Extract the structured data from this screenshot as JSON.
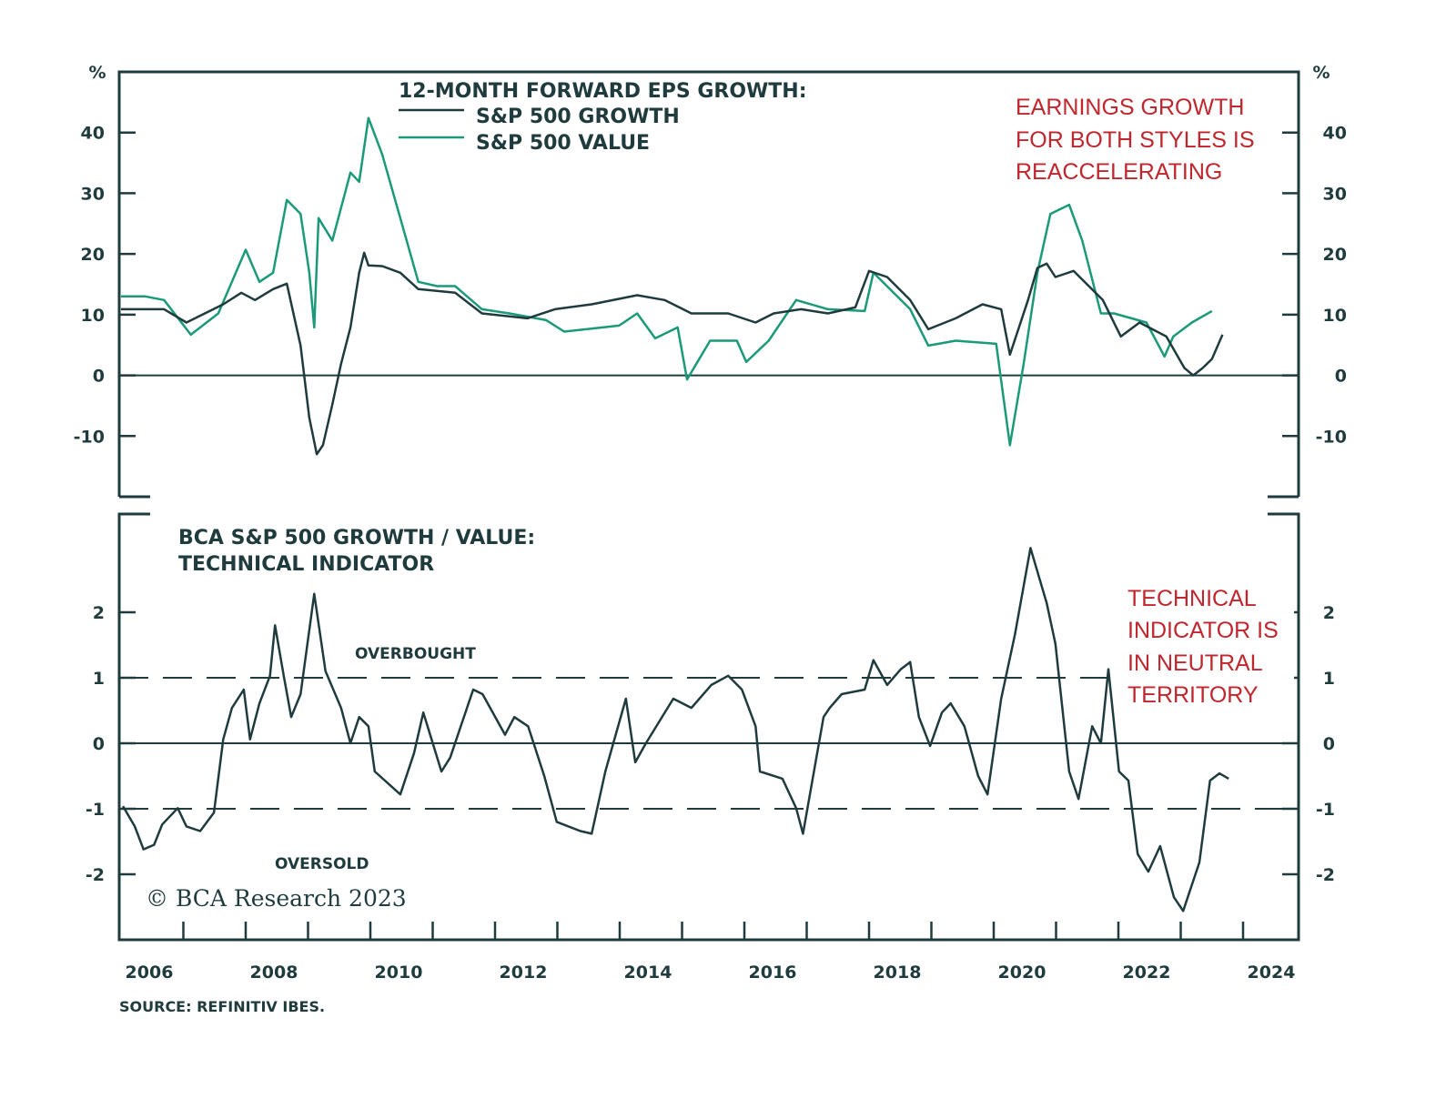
{
  "chart_data": [
    {
      "type": "line",
      "panel": "top",
      "title": "12-MONTH FORWARD EPS GROWTH:",
      "ylabel": "%",
      "ylim": [
        -20,
        50
      ],
      "yticks": [
        -10,
        0,
        10,
        20,
        30,
        40
      ],
      "ytick_labels": [
        "-10",
        "0",
        "10",
        "20",
        "30",
        "40"
      ],
      "xlim": [
        2006,
        2024.9
      ],
      "grid": false,
      "legend_position": "top-center",
      "annotation": [
        "EARNINGS GROWTH",
        "FOR BOTH STYLES IS",
        "REACCELERATING"
      ],
      "series": [
        {
          "name": "S&P 500 GROWTH",
          "color": "#1f3b3e",
          "points": [
            [
              2006.0,
              10.9
            ],
            [
              2006.69,
              10.9
            ],
            [
              2007.05,
              8.7
            ],
            [
              2007.64,
              11.7
            ],
            [
              2007.93,
              13.6
            ],
            [
              2008.15,
              12.4
            ],
            [
              2008.44,
              14.2
            ],
            [
              2008.66,
              15.1
            ],
            [
              2008.88,
              4.9
            ],
            [
              2009.02,
              -7.0
            ],
            [
              2009.14,
              -13.0
            ],
            [
              2009.24,
              -11.5
            ],
            [
              2009.39,
              -4.8
            ],
            [
              2009.53,
              1.9
            ],
            [
              2009.68,
              7.9
            ],
            [
              2009.82,
              16.9
            ],
            [
              2009.9,
              20.2
            ],
            [
              2009.97,
              18.1
            ],
            [
              2010.19,
              18.0
            ],
            [
              2010.48,
              16.9
            ],
            [
              2010.77,
              14.2
            ],
            [
              2011.36,
              13.6
            ],
            [
              2011.79,
              10.2
            ],
            [
              2012.52,
              9.4
            ],
            [
              2012.96,
              10.9
            ],
            [
              2013.55,
              11.7
            ],
            [
              2014.28,
              13.2
            ],
            [
              2014.72,
              12.4
            ],
            [
              2015.15,
              10.2
            ],
            [
              2015.74,
              10.2
            ],
            [
              2016.18,
              8.7
            ],
            [
              2016.47,
              10.2
            ],
            [
              2016.91,
              10.9
            ],
            [
              2017.34,
              10.2
            ],
            [
              2017.78,
              11.2
            ],
            [
              2018.0,
              17.2
            ],
            [
              2018.29,
              16.2
            ],
            [
              2018.66,
              12.4
            ],
            [
              2018.95,
              7.6
            ],
            [
              2019.39,
              9.4
            ],
            [
              2019.82,
              11.7
            ],
            [
              2020.12,
              10.9
            ],
            [
              2020.26,
              3.4
            ],
            [
              2020.55,
              12.4
            ],
            [
              2020.7,
              17.7
            ],
            [
              2020.85,
              18.4
            ],
            [
              2020.99,
              16.2
            ],
            [
              2021.28,
              17.2
            ],
            [
              2021.75,
              12.4
            ],
            [
              2022.04,
              6.4
            ],
            [
              2022.34,
              8.7
            ],
            [
              2022.77,
              6.4
            ],
            [
              2023.06,
              1.2
            ],
            [
              2023.2,
              0.0
            ],
            [
              2023.35,
              1.2
            ],
            [
              2023.5,
              2.7
            ],
            [
              2023.67,
              6.7
            ]
          ]
        },
        {
          "name": "S&P 500 VALUE",
          "color": "#1a9a78",
          "points": [
            [
              2006.0,
              13.0
            ],
            [
              2006.39,
              13.0
            ],
            [
              2006.69,
              12.4
            ],
            [
              2007.12,
              6.7
            ],
            [
              2007.56,
              10.2
            ],
            [
              2008.0,
              20.7
            ],
            [
              2008.22,
              15.4
            ],
            [
              2008.44,
              16.9
            ],
            [
              2008.66,
              28.9
            ],
            [
              2008.88,
              26.6
            ],
            [
              2009.02,
              16.9
            ],
            [
              2009.1,
              7.9
            ],
            [
              2009.17,
              25.9
            ],
            [
              2009.39,
              22.2
            ],
            [
              2009.68,
              33.4
            ],
            [
              2009.82,
              31.9
            ],
            [
              2009.97,
              42.4
            ],
            [
              2010.19,
              36.4
            ],
            [
              2010.48,
              25.9
            ],
            [
              2010.77,
              15.4
            ],
            [
              2011.07,
              14.7
            ],
            [
              2011.36,
              14.7
            ],
            [
              2011.79,
              10.9
            ],
            [
              2012.23,
              10.2
            ],
            [
              2012.82,
              9.1
            ],
            [
              2013.11,
              7.2
            ],
            [
              2013.99,
              8.2
            ],
            [
              2014.28,
              10.2
            ],
            [
              2014.57,
              6.1
            ],
            [
              2014.93,
              7.9
            ],
            [
              2015.08,
              -0.7
            ],
            [
              2015.45,
              5.7
            ],
            [
              2015.88,
              5.7
            ],
            [
              2016.03,
              2.2
            ],
            [
              2016.39,
              5.7
            ],
            [
              2016.83,
              12.4
            ],
            [
              2017.34,
              10.9
            ],
            [
              2017.93,
              10.6
            ],
            [
              2018.07,
              16.9
            ],
            [
              2018.66,
              10.9
            ],
            [
              2018.95,
              4.9
            ],
            [
              2019.39,
              5.7
            ],
            [
              2020.04,
              5.2
            ],
            [
              2020.26,
              -11.5
            ],
            [
              2020.48,
              1.9
            ],
            [
              2020.7,
              16.9
            ],
            [
              2020.91,
              26.6
            ],
            [
              2021.21,
              28.1
            ],
            [
              2021.42,
              22.2
            ],
            [
              2021.72,
              10.2
            ],
            [
              2021.93,
              10.2
            ],
            [
              2022.45,
              8.7
            ],
            [
              2022.74,
              3.1
            ],
            [
              2022.88,
              6.4
            ],
            [
              2023.18,
              8.7
            ],
            [
              2023.5,
              10.6
            ]
          ]
        }
      ]
    },
    {
      "type": "line",
      "panel": "bottom",
      "title": [
        "BCA S&P 500 GROWTH / VALUE:",
        "TECHNICAL INDICATOR"
      ],
      "ylim": [
        -3,
        3.5
      ],
      "yticks": [
        -2,
        -1,
        0,
        1,
        2
      ],
      "ytick_labels": [
        "-2",
        "-1",
        "0",
        "1",
        "2"
      ],
      "xlim": [
        2006,
        2024.9
      ],
      "x_tick_labels": [
        "2006",
        "2008",
        "2010",
        "2012",
        "2014",
        "2016",
        "2018",
        "2020",
        "2022",
        "2024"
      ],
      "x_tick_label_years": [
        2006,
        2008,
        2010,
        2012,
        2014,
        2016,
        2018,
        2020,
        2022,
        2024
      ],
      "reference_lines": [
        {
          "value": 1,
          "style": "dashed",
          "label": "OVERBOUGHT"
        },
        {
          "value": -1,
          "style": "dashed",
          "label": "OVERSOLD"
        },
        {
          "value": 0,
          "style": "solid"
        }
      ],
      "annotation": [
        "TECHNICAL",
        "INDICATOR IS",
        "IN NEUTRAL",
        "TERRITORY"
      ],
      "series": [
        {
          "name": "BCA S&P 500 Growth/Value Technical Indicator",
          "color": "#1f3b3e",
          "points": [
            [
              2006.03,
              -0.96
            ],
            [
              2006.22,
              -1.27
            ],
            [
              2006.36,
              -1.62
            ],
            [
              2006.53,
              -1.55
            ],
            [
              2006.66,
              -1.24
            ],
            [
              2006.91,
              -0.99
            ],
            [
              2007.05,
              -1.27
            ],
            [
              2007.27,
              -1.34
            ],
            [
              2007.49,
              -1.06
            ],
            [
              2007.64,
              0.06
            ],
            [
              2007.78,
              0.54
            ],
            [
              2007.97,
              0.82
            ],
            [
              2008.07,
              0.06
            ],
            [
              2008.22,
              0.61
            ],
            [
              2008.39,
              1.03
            ],
            [
              2008.47,
              1.8
            ],
            [
              2008.61,
              1.03
            ],
            [
              2008.73,
              0.4
            ],
            [
              2008.88,
              0.75
            ],
            [
              2009.1,
              2.28
            ],
            [
              2009.28,
              1.1
            ],
            [
              2009.53,
              0.54
            ],
            [
              2009.68,
              0.0
            ],
            [
              2009.82,
              0.4
            ],
            [
              2009.97,
              0.26
            ],
            [
              2010.07,
              -0.43
            ],
            [
              2010.48,
              -0.78
            ],
            [
              2010.7,
              -0.15
            ],
            [
              2010.85,
              0.47
            ],
            [
              2011.14,
              -0.43
            ],
            [
              2011.28,
              -0.22
            ],
            [
              2011.65,
              0.82
            ],
            [
              2011.8,
              0.75
            ],
            [
              2012.16,
              0.13
            ],
            [
              2012.31,
              0.4
            ],
            [
              2012.53,
              0.26
            ],
            [
              2012.79,
              -0.5
            ],
            [
              2012.99,
              -1.2
            ],
            [
              2013.37,
              -1.34
            ],
            [
              2013.55,
              -1.38
            ],
            [
              2013.77,
              -0.43
            ],
            [
              2014.1,
              0.68
            ],
            [
              2014.25,
              -0.29
            ],
            [
              2014.42,
              0.0
            ],
            [
              2014.86,
              0.68
            ],
            [
              2015.15,
              0.54
            ],
            [
              2015.47,
              0.89
            ],
            [
              2015.74,
              1.03
            ],
            [
              2015.96,
              0.82
            ],
            [
              2016.18,
              0.26
            ],
            [
              2016.25,
              -0.43
            ],
            [
              2016.61,
              -0.54
            ],
            [
              2016.83,
              -0.99
            ],
            [
              2016.94,
              -1.38
            ],
            [
              2017.27,
              0.4
            ],
            [
              2017.37,
              0.54
            ],
            [
              2017.56,
              0.75
            ],
            [
              2017.93,
              0.82
            ],
            [
              2018.07,
              1.27
            ],
            [
              2018.29,
              0.89
            ],
            [
              2018.51,
              1.13
            ],
            [
              2018.66,
              1.24
            ],
            [
              2018.8,
              0.4
            ],
            [
              2018.98,
              -0.04
            ],
            [
              2019.17,
              0.47
            ],
            [
              2019.31,
              0.61
            ],
            [
              2019.53,
              0.26
            ],
            [
              2019.75,
              -0.5
            ],
            [
              2019.9,
              -0.78
            ],
            [
              2020.12,
              0.68
            ],
            [
              2020.34,
              1.66
            ],
            [
              2020.59,
              2.98
            ],
            [
              2020.85,
              2.14
            ],
            [
              2020.99,
              1.52
            ],
            [
              2021.21,
              -0.43
            ],
            [
              2021.36,
              -0.85
            ],
            [
              2021.58,
              0.26
            ],
            [
              2021.72,
              0.0
            ],
            [
              2021.84,
              1.13
            ],
            [
              2022.01,
              -0.43
            ],
            [
              2022.16,
              -0.57
            ],
            [
              2022.31,
              -1.69
            ],
            [
              2022.48,
              -1.96
            ],
            [
              2022.67,
              -1.57
            ],
            [
              2022.89,
              -2.35
            ],
            [
              2023.04,
              -2.56
            ],
            [
              2023.3,
              -1.82
            ],
            [
              2023.47,
              -0.57
            ],
            [
              2023.62,
              -0.46
            ],
            [
              2023.77,
              -0.54
            ]
          ]
        }
      ]
    }
  ],
  "copyright": "© BCA Research 2023",
  "source": "SOURCE: REFINITIV IBES."
}
